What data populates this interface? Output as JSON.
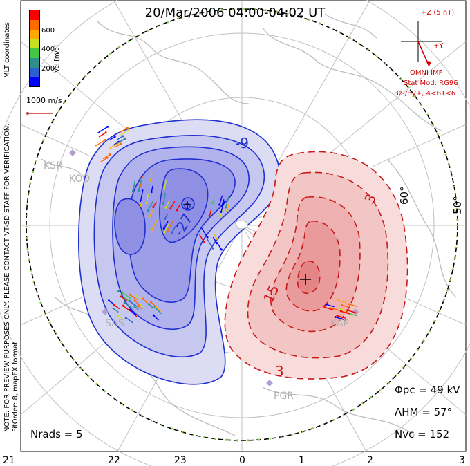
{
  "title": "20/Mar/2006 04:00-04:02 UT",
  "colorbar": {
    "label": "Vel [m/s]",
    "ticks": [
      "600",
      "400",
      "200"
    ],
    "colors": [
      "#ff0000",
      "#ff6a00",
      "#ffaa00",
      "#c8e020",
      "#44c844",
      "#2f8f8f",
      "#2d5fd0",
      "#0000ff"
    ]
  },
  "side_labels": {
    "mlt_coords": "MLT coordinates",
    "preview_note": "NOTE: FOR PREVIEW PURPOSES ONLY. PLEASE CONTACT VT-SD STAFF FOR VERIFICATION.",
    "fit_note": "FitOrder: 8, mapEX format"
  },
  "vector_scale": "1000 m/s",
  "imf": {
    "bz_label": "+Z (5 nT)",
    "by_label": "+Y",
    "omni": "OMNI IMF",
    "stat_mod": "Stat Mod: RG96",
    "condition": "Bz-/By+, 4<BT<6"
  },
  "lat_labels": [
    "60°",
    "50°"
  ],
  "contour_labels": [
    "-9",
    "-27",
    "15",
    "3",
    "3"
  ],
  "stations": [
    "KSR",
    "KOD",
    "SAS",
    "PGR",
    "KAP"
  ],
  "stats": {
    "phi_pc": "Φpc = 49 kV",
    "lambda_hm": "ΛHM = 57°",
    "n_vc": "Nvc = 152",
    "n_rads": "Nrads = 5"
  },
  "mlt_ticks": [
    "21",
    "22",
    "23",
    "0",
    "1",
    "2",
    "3"
  ],
  "colors": {
    "neg": "#1f2fd0",
    "pos": "#d02020",
    "grid": "#b8b8b8",
    "boundary": "#000000"
  }
}
